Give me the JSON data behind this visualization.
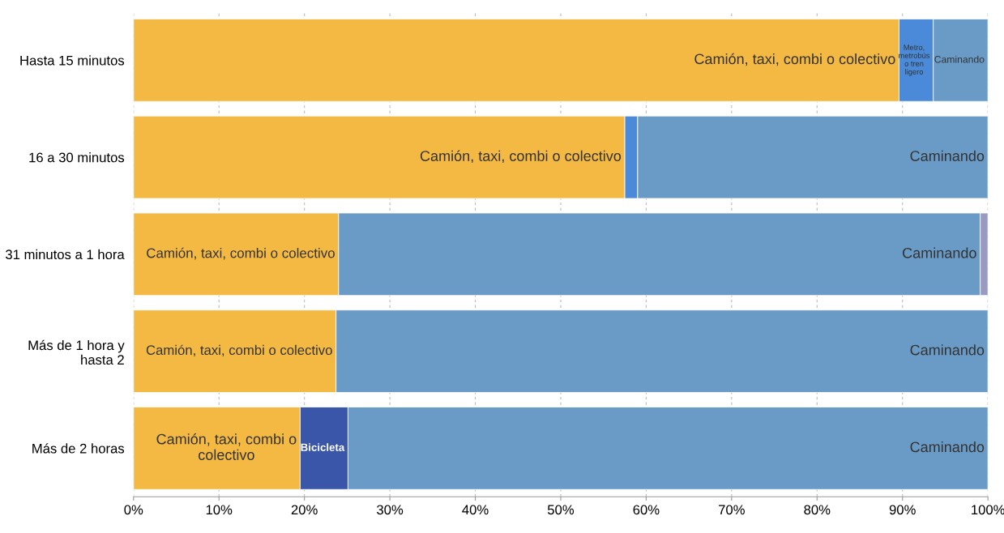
{
  "chart_data": {
    "type": "bar",
    "orientation": "horizontal",
    "stacked": true,
    "grid": "x",
    "categories": [
      "Hasta 15 minutos",
      "16 a 30 minutos",
      "31 minutos a 1 hora",
      "Más de 1 hora y\nhasta 2",
      "Más de 2 horas"
    ],
    "series": [
      {
        "color": "#f4b942",
        "values": [
          89.6,
          57.5,
          24.0,
          23.7,
          19.5
        ]
      },
      {
        "color": "#4a8ad8",
        "values": [
          4.0,
          1.5,
          null,
          null,
          null
        ]
      },
      {
        "color": "#3a56a8",
        "values": [
          null,
          null,
          null,
          null,
          5.6
        ]
      },
      {
        "color": "#6a9bc6",
        "values": [
          6.4,
          41.0,
          75.1,
          76.3,
          74.9
        ]
      },
      {
        "color": "#9a9ac0",
        "values": [
          null,
          null,
          0.9,
          null,
          null
        ]
      }
    ],
    "xlim": [
      0,
      100
    ],
    "xticks": [
      {
        "value": 0,
        "label": "0%"
      },
      {
        "value": 10,
        "label": "10%"
      },
      {
        "value": 20,
        "label": "20%"
      },
      {
        "value": 30,
        "label": "30%"
      },
      {
        "value": 40,
        "label": "40%"
      },
      {
        "value": 50,
        "label": "50%"
      },
      {
        "value": 60,
        "label": "60%"
      },
      {
        "value": 70,
        "label": "70%"
      },
      {
        "value": 80,
        "label": "80%"
      },
      {
        "value": 90,
        "label": "90%"
      },
      {
        "value": 100,
        "label": "100%"
      }
    ],
    "annotations": [
      {
        "text": "Camión, taxi, combi o colectivo",
        "x": 89.6,
        "y": "Hasta 15 minutos"
      },
      {
        "text": "Metro,\nmetrobús\no tren\nligero",
        "x": 93.6,
        "y": "Hasta 15 minutos"
      },
      {
        "text": "Caminando",
        "x": 100,
        "y": "Hasta 15 minutos"
      },
      {
        "text": "Camión, taxi, combi o colectivo",
        "x": 57.5,
        "y": "16 a 30 minutos"
      },
      {
        "text": "Caminando",
        "x": 100,
        "y": "16 a 30 minutos"
      },
      {
        "text": "Camión, taxi, combi o colectivo",
        "x": 24.0,
        "y": "31 minutos a 1 hora"
      },
      {
        "text": "Caminando",
        "x": 99.1,
        "y": "31 minutos a 1 hora"
      },
      {
        "text": "Camión, taxi, combi o colectivo",
        "x": 23.7,
        "y": "Más de 1 hora y\nhasta 2"
      },
      {
        "text": "Caminando",
        "x": 100,
        "y": "Más de 1 hora y\nhasta 2"
      },
      {
        "text": "Camión, taxi, combi o\ncolectivo",
        "x": 19.5,
        "y": "Más de 2 horas"
      },
      {
        "text": "Bicicleta",
        "x": 25.1,
        "y": "Más de 2 horas"
      },
      {
        "text": "Caminando",
        "x": 100,
        "y": "Más de 2 horas"
      }
    ]
  }
}
